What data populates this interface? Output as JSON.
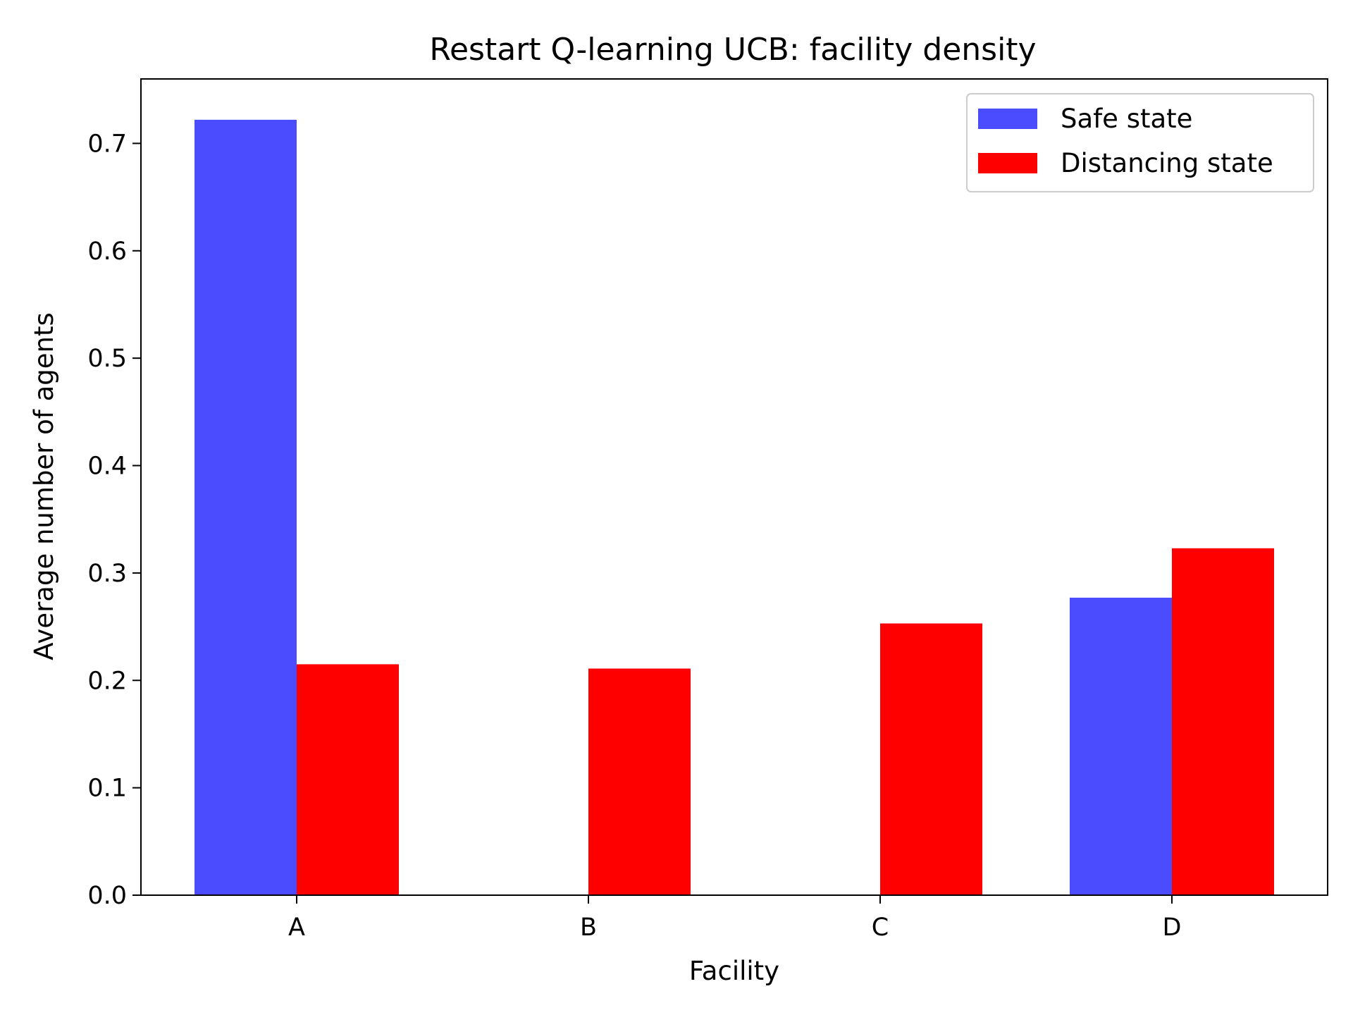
{
  "chart_data": {
    "type": "bar",
    "title": "Restart Q-learning UCB: facility density",
    "xlabel": "Facility",
    "ylabel": "Average number of agents",
    "categories": [
      "A",
      "B",
      "C",
      "D"
    ],
    "series": [
      {
        "name": "Safe state",
        "color": "#4c4cff",
        "values": [
          0.722,
          0.0,
          0.0,
          0.277
        ]
      },
      {
        "name": "Distancing state",
        "color": "#ff0000",
        "values": [
          0.215,
          0.211,
          0.253,
          0.323
        ]
      }
    ],
    "ylim": [
      0,
      0.76
    ],
    "yticks": [
      0.0,
      0.1,
      0.2,
      0.3,
      0.4,
      0.5,
      0.6,
      0.7
    ],
    "legend_position": "top-right",
    "grid": false
  }
}
